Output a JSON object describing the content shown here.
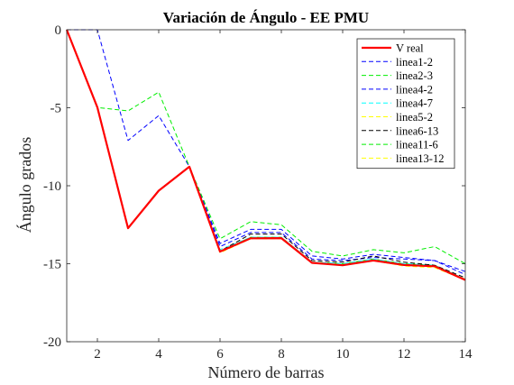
{
  "chart_data": {
    "type": "line",
    "title": "Variación de Ángulo - EE PMU",
    "xlabel": "Número de barras",
    "ylabel": "Ángulo grados",
    "xlim": [
      1,
      14
    ],
    "ylim": [
      -20,
      0
    ],
    "xticks": [
      2,
      4,
      6,
      8,
      10,
      12,
      14
    ],
    "yticks": [
      0,
      -5,
      -10,
      -15,
      -20
    ],
    "grid": false,
    "legend_position": "top-right",
    "x": [
      1,
      2,
      3,
      4,
      5,
      6,
      7,
      8,
      9,
      10,
      11,
      12,
      13,
      14
    ],
    "series": [
      {
        "name": "V real",
        "color": "#ff0000",
        "style": "solid",
        "width": 2.2,
        "values": [
          0,
          -4.98,
          -12.72,
          -10.32,
          -8.78,
          -14.22,
          -13.37,
          -13.36,
          -14.94,
          -15.1,
          -14.79,
          -15.08,
          -15.16,
          -16.04
        ]
      },
      {
        "name": "linea1-2",
        "color": "#0000ff",
        "style": "dashed",
        "width": 1,
        "values": [
          0,
          0,
          -7.1,
          -5.5,
          -8.78,
          -13.9,
          -13.0,
          -13.0,
          -14.7,
          -14.8,
          -14.6,
          -14.7,
          -14.8,
          -15.7
        ]
      },
      {
        "name": "linea2-3",
        "color": "#00ee00",
        "style": "dashed",
        "width": 1,
        "values": [
          0,
          -4.98,
          -5.2,
          -4.0,
          -8.78,
          -14.2,
          -13.3,
          -13.3,
          -14.9,
          -15.0,
          -14.7,
          -15.0,
          -15.1,
          -16.0
        ]
      },
      {
        "name": "linea4-2",
        "color": "#0000ff",
        "style": "dashed",
        "width": 1,
        "values": [
          0,
          -4.98,
          -12.72,
          -10.32,
          -8.78,
          -13.7,
          -12.8,
          -12.8,
          -14.5,
          -14.7,
          -14.4,
          -14.6,
          -14.8,
          -15.5
        ]
      },
      {
        "name": "linea4-7",
        "color": "#00ffff",
        "style": "dashed",
        "width": 1,
        "values": [
          0,
          -4.98,
          -12.72,
          -10.32,
          -8.78,
          -14.1,
          -13.3,
          -13.3,
          -14.9,
          -15.0,
          -14.7,
          -15.0,
          -15.1,
          -16.0
        ]
      },
      {
        "name": "linea5-2",
        "color": "#ffff00",
        "style": "dashed",
        "width": 1,
        "values": [
          0,
          -4.98,
          -12.72,
          -10.32,
          -8.78,
          -14.3,
          -13.4,
          -13.4,
          -14.95,
          -15.1,
          -14.8,
          -15.1,
          -15.2,
          -16.0
        ]
      },
      {
        "name": "linea6-13",
        "color": "#000000",
        "style": "dashed",
        "width": 1,
        "values": [
          0,
          -4.98,
          -12.72,
          -10.32,
          -8.78,
          -14.2,
          -13.1,
          -13.1,
          -14.8,
          -14.9,
          -14.5,
          -14.9,
          -15.1,
          -15.9
        ]
      },
      {
        "name": "linea11-6",
        "color": "#00ee00",
        "style": "dashed",
        "width": 1,
        "values": [
          0,
          -4.98,
          -12.72,
          -10.32,
          -8.78,
          -13.4,
          -12.3,
          -12.5,
          -14.2,
          -14.5,
          -14.1,
          -14.3,
          -13.9,
          -15.0
        ]
      },
      {
        "name": "linea13-12",
        "color": "#ffff00",
        "style": "dashed",
        "width": 1,
        "values": [
          0,
          -4.98,
          -12.72,
          -10.32,
          -8.78,
          -14.25,
          -13.35,
          -13.35,
          -14.95,
          -15.1,
          -14.8,
          -15.15,
          -15.25,
          -16.05
        ]
      }
    ]
  }
}
